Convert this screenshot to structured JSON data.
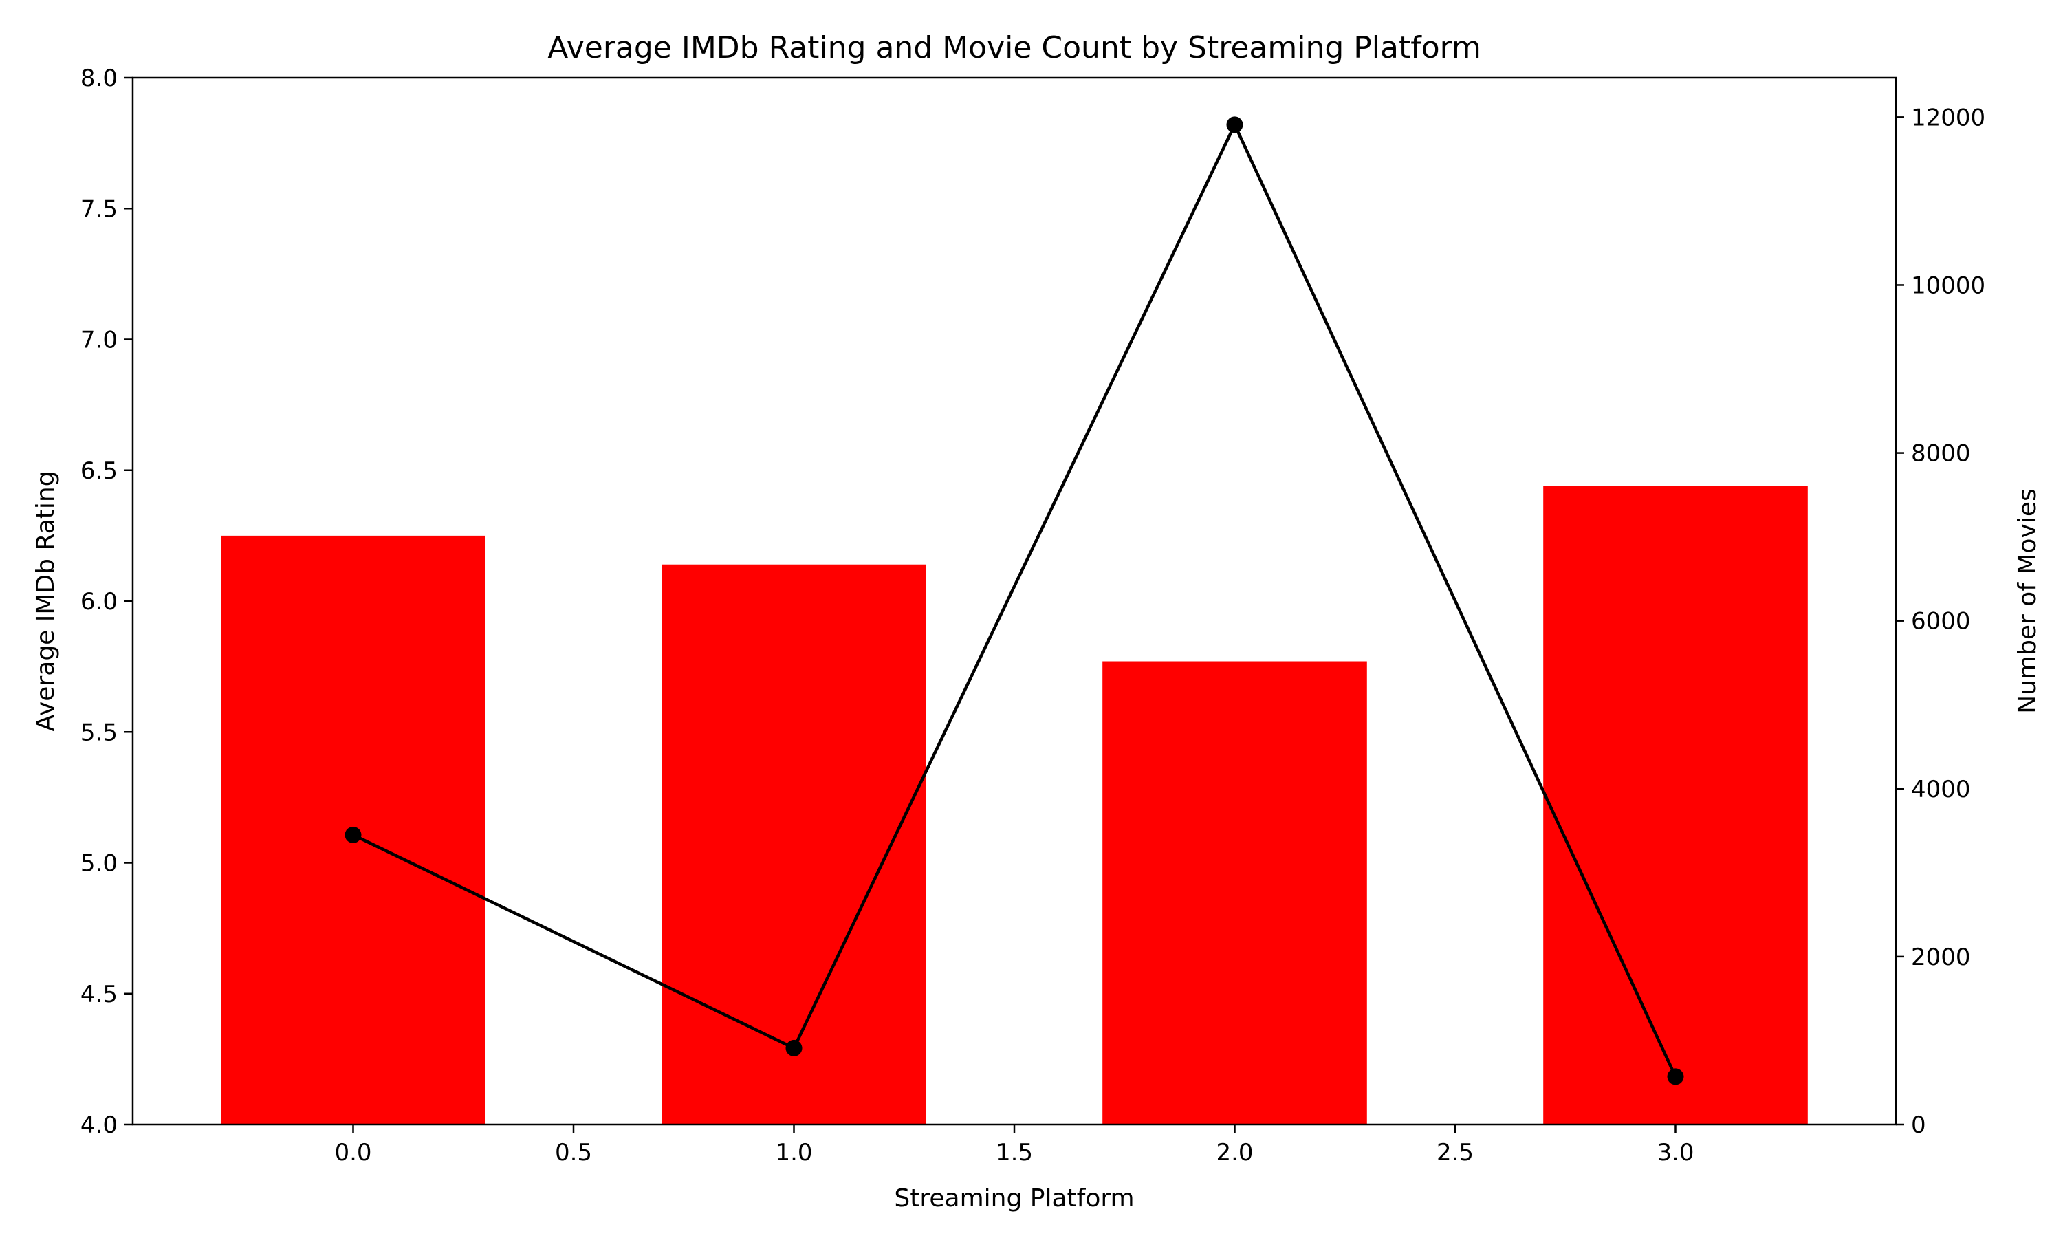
{
  "chart_data": {
    "type": "bar",
    "title": "Average IMDb Rating and Movie Count by Streaming Platform",
    "xlabel": "Streaming Platform",
    "ylabel": "Average IMDb Rating",
    "y2label": "Number of Movies",
    "xlim": [
      -0.5,
      3.5
    ],
    "ylim": [
      4.0,
      8.0
    ],
    "y2lim": [
      0,
      12470
    ],
    "xticks": [
      "0.0",
      "0.5",
      "1.0",
      "1.5",
      "2.0",
      "2.5",
      "3.0"
    ],
    "xtick_values": [
      0,
      0.5,
      1,
      1.5,
      2,
      2.5,
      3
    ],
    "yticks": [
      "4.0",
      "4.5",
      "5.0",
      "5.5",
      "6.0",
      "6.5",
      "7.0",
      "7.5",
      "8.0"
    ],
    "ytick_values": [
      4.0,
      4.5,
      5.0,
      5.5,
      6.0,
      6.5,
      7.0,
      7.5,
      8.0
    ],
    "y2ticks": [
      "0",
      "2000",
      "4000",
      "6000",
      "8000",
      "10000",
      "12000"
    ],
    "y2tick_values": [
      0,
      2000,
      4000,
      6000,
      8000,
      10000,
      12000
    ],
    "grid": false,
    "bar_series": {
      "x": [
        0,
        1,
        2,
        3
      ],
      "values": [
        6.25,
        6.14,
        5.77,
        6.44
      ],
      "color": "#ff0000"
    },
    "line_series": {
      "x": [
        0,
        1,
        2,
        3
      ],
      "values": [
        3450,
        910,
        11910,
        570
      ],
      "color": "#000000"
    }
  }
}
